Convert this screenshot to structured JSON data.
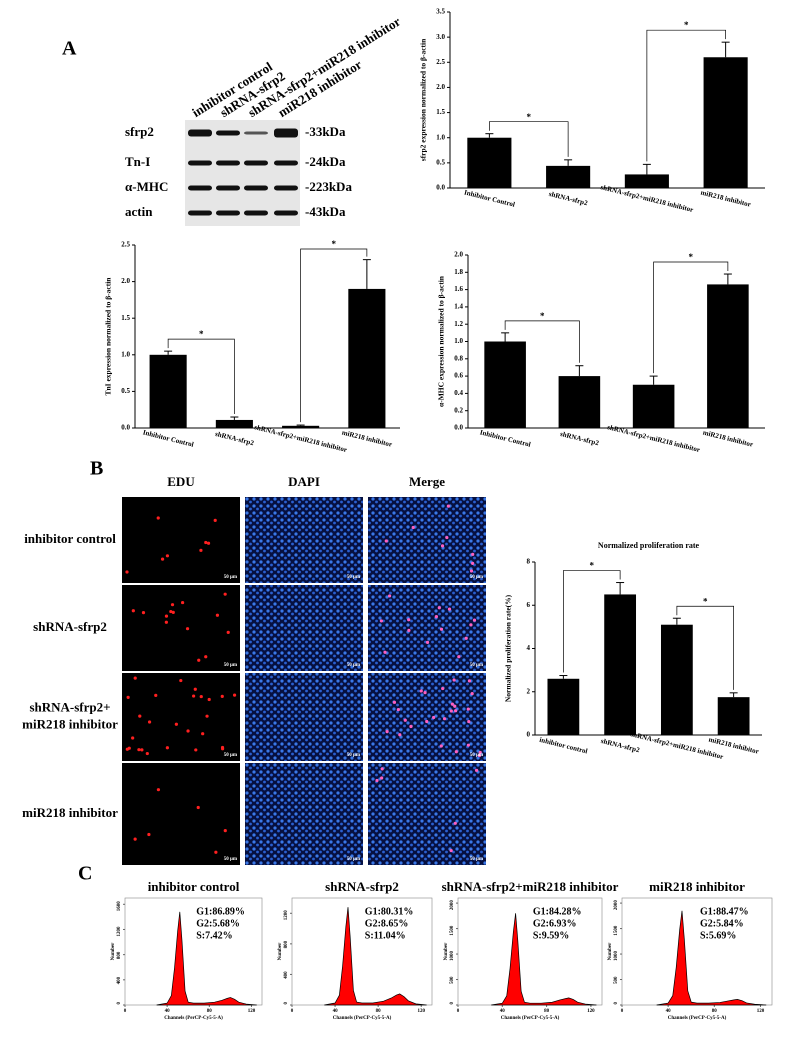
{
  "panel_labels": [
    "A",
    "B",
    "C"
  ],
  "blot": {
    "lanes": [
      "inhibitor control",
      "shRNA-sfrp2",
      "shRNA-sfrp2+miR218 inhibitor",
      "miR218 inhibitor"
    ],
    "proteins": [
      "sfrp2",
      "Tn-I",
      "α-MHC",
      "actin"
    ],
    "sizes": [
      "-33kDa",
      "-24kDa",
      "-223kDa",
      "-43kDa"
    ]
  },
  "microscopy": {
    "columns": [
      "EDU",
      "DAPI",
      "Merge"
    ],
    "rows": [
      [
        "inhibitor control"
      ],
      [
        "shRNA-sfrp2"
      ],
      [
        "shRNA-sfrp2+",
        "miR218 inhibitor"
      ],
      [
        "miR218 inhibitor"
      ]
    ],
    "scale_bar": "50 μm"
  },
  "chart_data": [
    {
      "type": "bar",
      "ylabel": "sfrp2 expression normalized to β-actin",
      "categories": [
        "Inhibitor Control",
        "shRNA-sfrp2",
        "shRNA-sfrp2+miR218 inhibitor",
        "miR218 inhibitor"
      ],
      "values": [
        1.0,
        0.44,
        0.27,
        2.6
      ],
      "errors": [
        0.08,
        0.12,
        0.2,
        0.3
      ],
      "color": "#000000",
      "ylim": [
        0,
        3.5
      ],
      "yticks": [
        {
          "value": 0,
          "label": "0.0"
        },
        0.5,
        {
          "value": 1,
          "label": "1.0"
        },
        1.5,
        {
          "value": 2,
          "label": "2.0"
        },
        2.5,
        {
          "value": 3,
          "label": "3.0"
        },
        3.5
      ],
      "significance": [
        {
          "pair": [
            0,
            1
          ],
          "label": "*"
        },
        {
          "pair": [
            2,
            3
          ],
          "label": "*"
        }
      ]
    },
    {
      "type": "bar",
      "ylabel": "TnI expression normalized to β-actin",
      "categories": [
        "Inhibitor Control",
        "shRNA-sfrp2",
        "shRNA-sfrp2+miR218 inhibitor",
        "miR218 inhibitor"
      ],
      "values": [
        1.0,
        0.11,
        0.03,
        1.9
      ],
      "errors": [
        0.05,
        0.04,
        0.01,
        0.4
      ],
      "color": "#000000",
      "ylim": [
        0,
        2.5
      ],
      "yticks": [
        {
          "value": 0,
          "label": "0.0"
        },
        0.5,
        {
          "value": 1,
          "label": "1.0"
        },
        1.5,
        {
          "value": 2,
          "label": "2.0"
        },
        2.5
      ],
      "significance": [
        {
          "pair": [
            0,
            1
          ],
          "label": "*"
        },
        {
          "pair": [
            2,
            3
          ],
          "label": "*"
        }
      ]
    },
    {
      "type": "bar",
      "ylabel": "α-MHC expression normalized to β-actin",
      "categories": [
        "Inhibitor Control",
        "shRNA-sfrp2",
        "shRNA-sfrp2+miR218 inhibitor",
        "miR218 inhibitor"
      ],
      "values": [
        1.0,
        0.6,
        0.5,
        1.66
      ],
      "errors": [
        0.1,
        0.12,
        0.1,
        0.12
      ],
      "color": "#000000",
      "ylim": [
        0,
        2.0
      ],
      "yticks": [
        {
          "value": 0,
          "label": "0.0"
        },
        0.2,
        0.4,
        0.6,
        0.8,
        {
          "value": 1,
          "label": "1.0"
        },
        1.2,
        1.4,
        1.6,
        1.8,
        {
          "value": 2,
          "label": "2.0"
        }
      ],
      "significance": [
        {
          "pair": [
            0,
            1
          ],
          "label": "*"
        },
        {
          "pair": [
            2,
            3
          ],
          "label": "*"
        }
      ]
    },
    {
      "type": "bar",
      "title": "Normalized proliferation rate",
      "ylabel": "Normalized proliferation rate(%)",
      "categories": [
        "inhibitor control",
        "shRNA-sfrp2",
        "shRNA-sfrp2+miR218 inhibitor",
        "miR218 inhibitor"
      ],
      "values": [
        2.6,
        6.5,
        5.1,
        1.75
      ],
      "errors": [
        0.15,
        0.55,
        0.3,
        0.2
      ],
      "color": "#000000",
      "ylim": [
        0,
        8
      ],
      "yticks": [
        0,
        2,
        4,
        6,
        8
      ],
      "significance": [
        {
          "pair": [
            0,
            1
          ],
          "label": "*"
        },
        {
          "pair": [
            2,
            3
          ],
          "label": "*"
        }
      ]
    },
    {
      "type": "flow",
      "title": "inhibitor control",
      "xlabel": "Channels (PerCP-Cy5-5-A)",
      "ylabel": "Number",
      "annotations": [
        "G1:86.89%",
        "G2:5.68%",
        "S:7.42%"
      ],
      "color": "#ff0000",
      "x": [
        30,
        40,
        44,
        47,
        50,
        52,
        54,
        57,
        60,
        65,
        75,
        85,
        92,
        97,
        100,
        104,
        108,
        115,
        125
      ],
      "values": [
        0,
        30,
        150,
        590,
        1180,
        1480,
        1040,
        220,
        45,
        30,
        30,
        45,
        75,
        105,
        120,
        90,
        45,
        15,
        0
      ],
      "xlim": [
        0,
        130
      ],
      "ylim": [
        0,
        1700
      ],
      "xticks": [
        0,
        40,
        80,
        120
      ],
      "yticks": [
        0,
        400,
        800,
        1200,
        1600
      ]
    },
    {
      "type": "flow",
      "title": "shRNA-sfrp2",
      "xlabel": "Channels (PerCP-Cy5-5-A)",
      "ylabel": "Number",
      "annotations": [
        "G1:80.31%",
        "G2:8.65%",
        "S:11.04%"
      ],
      "color": "#ff0000",
      "x": [
        30,
        40,
        44,
        47,
        50,
        52,
        54,
        57,
        60,
        65,
        75,
        85,
        92,
        97,
        100,
        104,
        108,
        115,
        125
      ],
      "values": [
        0,
        26,
        128,
        512,
        1024,
        1280,
        896,
        192,
        38,
        26,
        26,
        50,
        90,
        130,
        145,
        110,
        55,
        15,
        0
      ],
      "xlim": [
        0,
        130
      ],
      "ylim": [
        0,
        1400
      ],
      "xticks": [
        0,
        40,
        80,
        120
      ],
      "yticks": [
        0,
        400,
        800,
        1200
      ]
    },
    {
      "type": "flow",
      "title": "shRNA-sfrp2+miR218 inhibitor",
      "xlabel": "Channels (PerCP-Cy5-5-A)",
      "ylabel": "Number",
      "annotations": [
        "G1:84.28%",
        "G2:6.93%",
        "S:9.59%"
      ],
      "color": "#ff0000",
      "x": [
        30,
        40,
        44,
        47,
        50,
        52,
        54,
        57,
        60,
        65,
        75,
        85,
        92,
        97,
        100,
        104,
        108,
        115,
        125
      ],
      "values": [
        0,
        36,
        180,
        720,
        1440,
        1800,
        1260,
        270,
        54,
        36,
        36,
        54,
        100,
        125,
        140,
        110,
        55,
        18,
        0
      ],
      "xlim": [
        0,
        130
      ],
      "ylim": [
        0,
        2100
      ],
      "xticks": [
        0,
        40,
        80,
        120
      ],
      "yticks": [
        0,
        500,
        1000,
        1500,
        2000
      ]
    },
    {
      "type": "flow",
      "title": "miR218 inhibitor",
      "xlabel": "Channels (PerCP-Cy5-5-A)",
      "ylabel": "Number",
      "annotations": [
        "G1:88.47%",
        "G2:5.84%",
        "S:5.69%"
      ],
      "color": "#ff0000",
      "x": [
        30,
        40,
        44,
        47,
        50,
        52,
        54,
        57,
        60,
        65,
        75,
        85,
        92,
        97,
        100,
        104,
        108,
        115,
        125
      ],
      "values": [
        0,
        37,
        185,
        740,
        1480,
        1850,
        1295,
        278,
        56,
        37,
        37,
        50,
        80,
        100,
        110,
        85,
        40,
        15,
        0
      ],
      "xlim": [
        0,
        130
      ],
      "ylim": [
        0,
        2100
      ],
      "xticks": [
        0,
        40,
        80,
        120
      ],
      "yticks": [
        0,
        500,
        1000,
        1500,
        2000
      ]
    }
  ]
}
